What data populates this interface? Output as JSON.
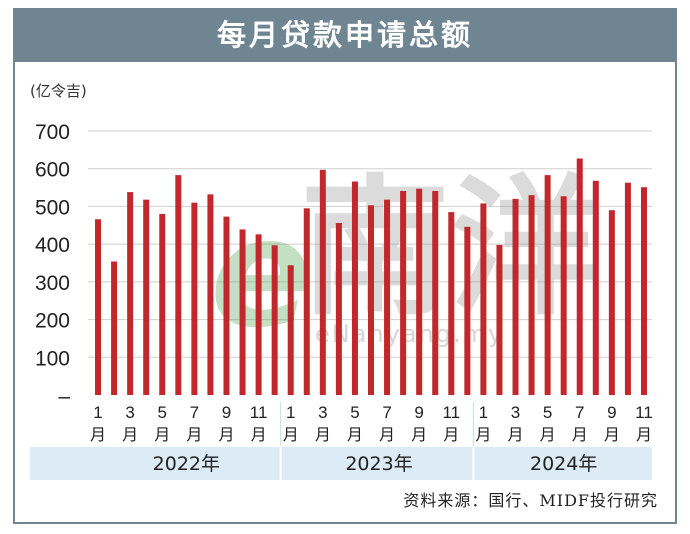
{
  "title": "每月贷款申请总额",
  "unit": "(亿令吉)",
  "source": "资料来源：国行、MIDF投行研究",
  "watermark": {
    "brand": "南洋",
    "url": "eNanyang.my"
  },
  "colors": {
    "bar": "#c1272d",
    "header": "#6f8592",
    "band": "#dcebf5"
  },
  "chart_data": {
    "type": "bar",
    "title": "每月贷款申请总额",
    "ylabel": "(亿令吉)",
    "xlabel": "",
    "ylim": [
      0,
      700
    ],
    "yticks": [
      "–",
      "100",
      "200",
      "300",
      "400",
      "500",
      "600",
      "700"
    ],
    "grid": true,
    "month_suffix": "月",
    "categories": [
      "2022-01",
      "2022-02",
      "2022-03",
      "2022-04",
      "2022-05",
      "2022-06",
      "2022-07",
      "2022-08",
      "2022-09",
      "2022-10",
      "2022-11",
      "2022-12",
      "2023-01",
      "2023-02",
      "2023-03",
      "2023-04",
      "2023-05",
      "2023-06",
      "2023-07",
      "2023-08",
      "2023-09",
      "2023-10",
      "2023-11",
      "2023-12",
      "2024-01",
      "2024-02",
      "2024-03",
      "2024-04",
      "2024-05",
      "2024-06",
      "2024-07",
      "2024-08",
      "2024-09",
      "2024-10",
      "2024-11"
    ],
    "month_labels": [
      "1",
      "",
      "3",
      "",
      "5",
      "",
      "7",
      "",
      "9",
      "",
      "11",
      "",
      "1",
      "",
      "3",
      "",
      "5",
      "",
      "7",
      "",
      "9",
      "",
      "11",
      "",
      "1",
      "",
      "3",
      "",
      "5",
      "",
      "7",
      "",
      "9",
      "",
      "11"
    ],
    "years": [
      "2022年",
      "2023年",
      "2024年"
    ],
    "values": [
      466,
      354,
      538,
      518,
      480,
      583,
      510,
      532,
      473,
      439,
      426,
      397,
      344,
      495,
      597,
      456,
      566,
      503,
      518,
      541,
      547,
      541,
      485,
      446,
      508,
      398,
      520,
      530,
      583,
      527,
      627,
      568,
      490,
      563,
      551
    ]
  }
}
